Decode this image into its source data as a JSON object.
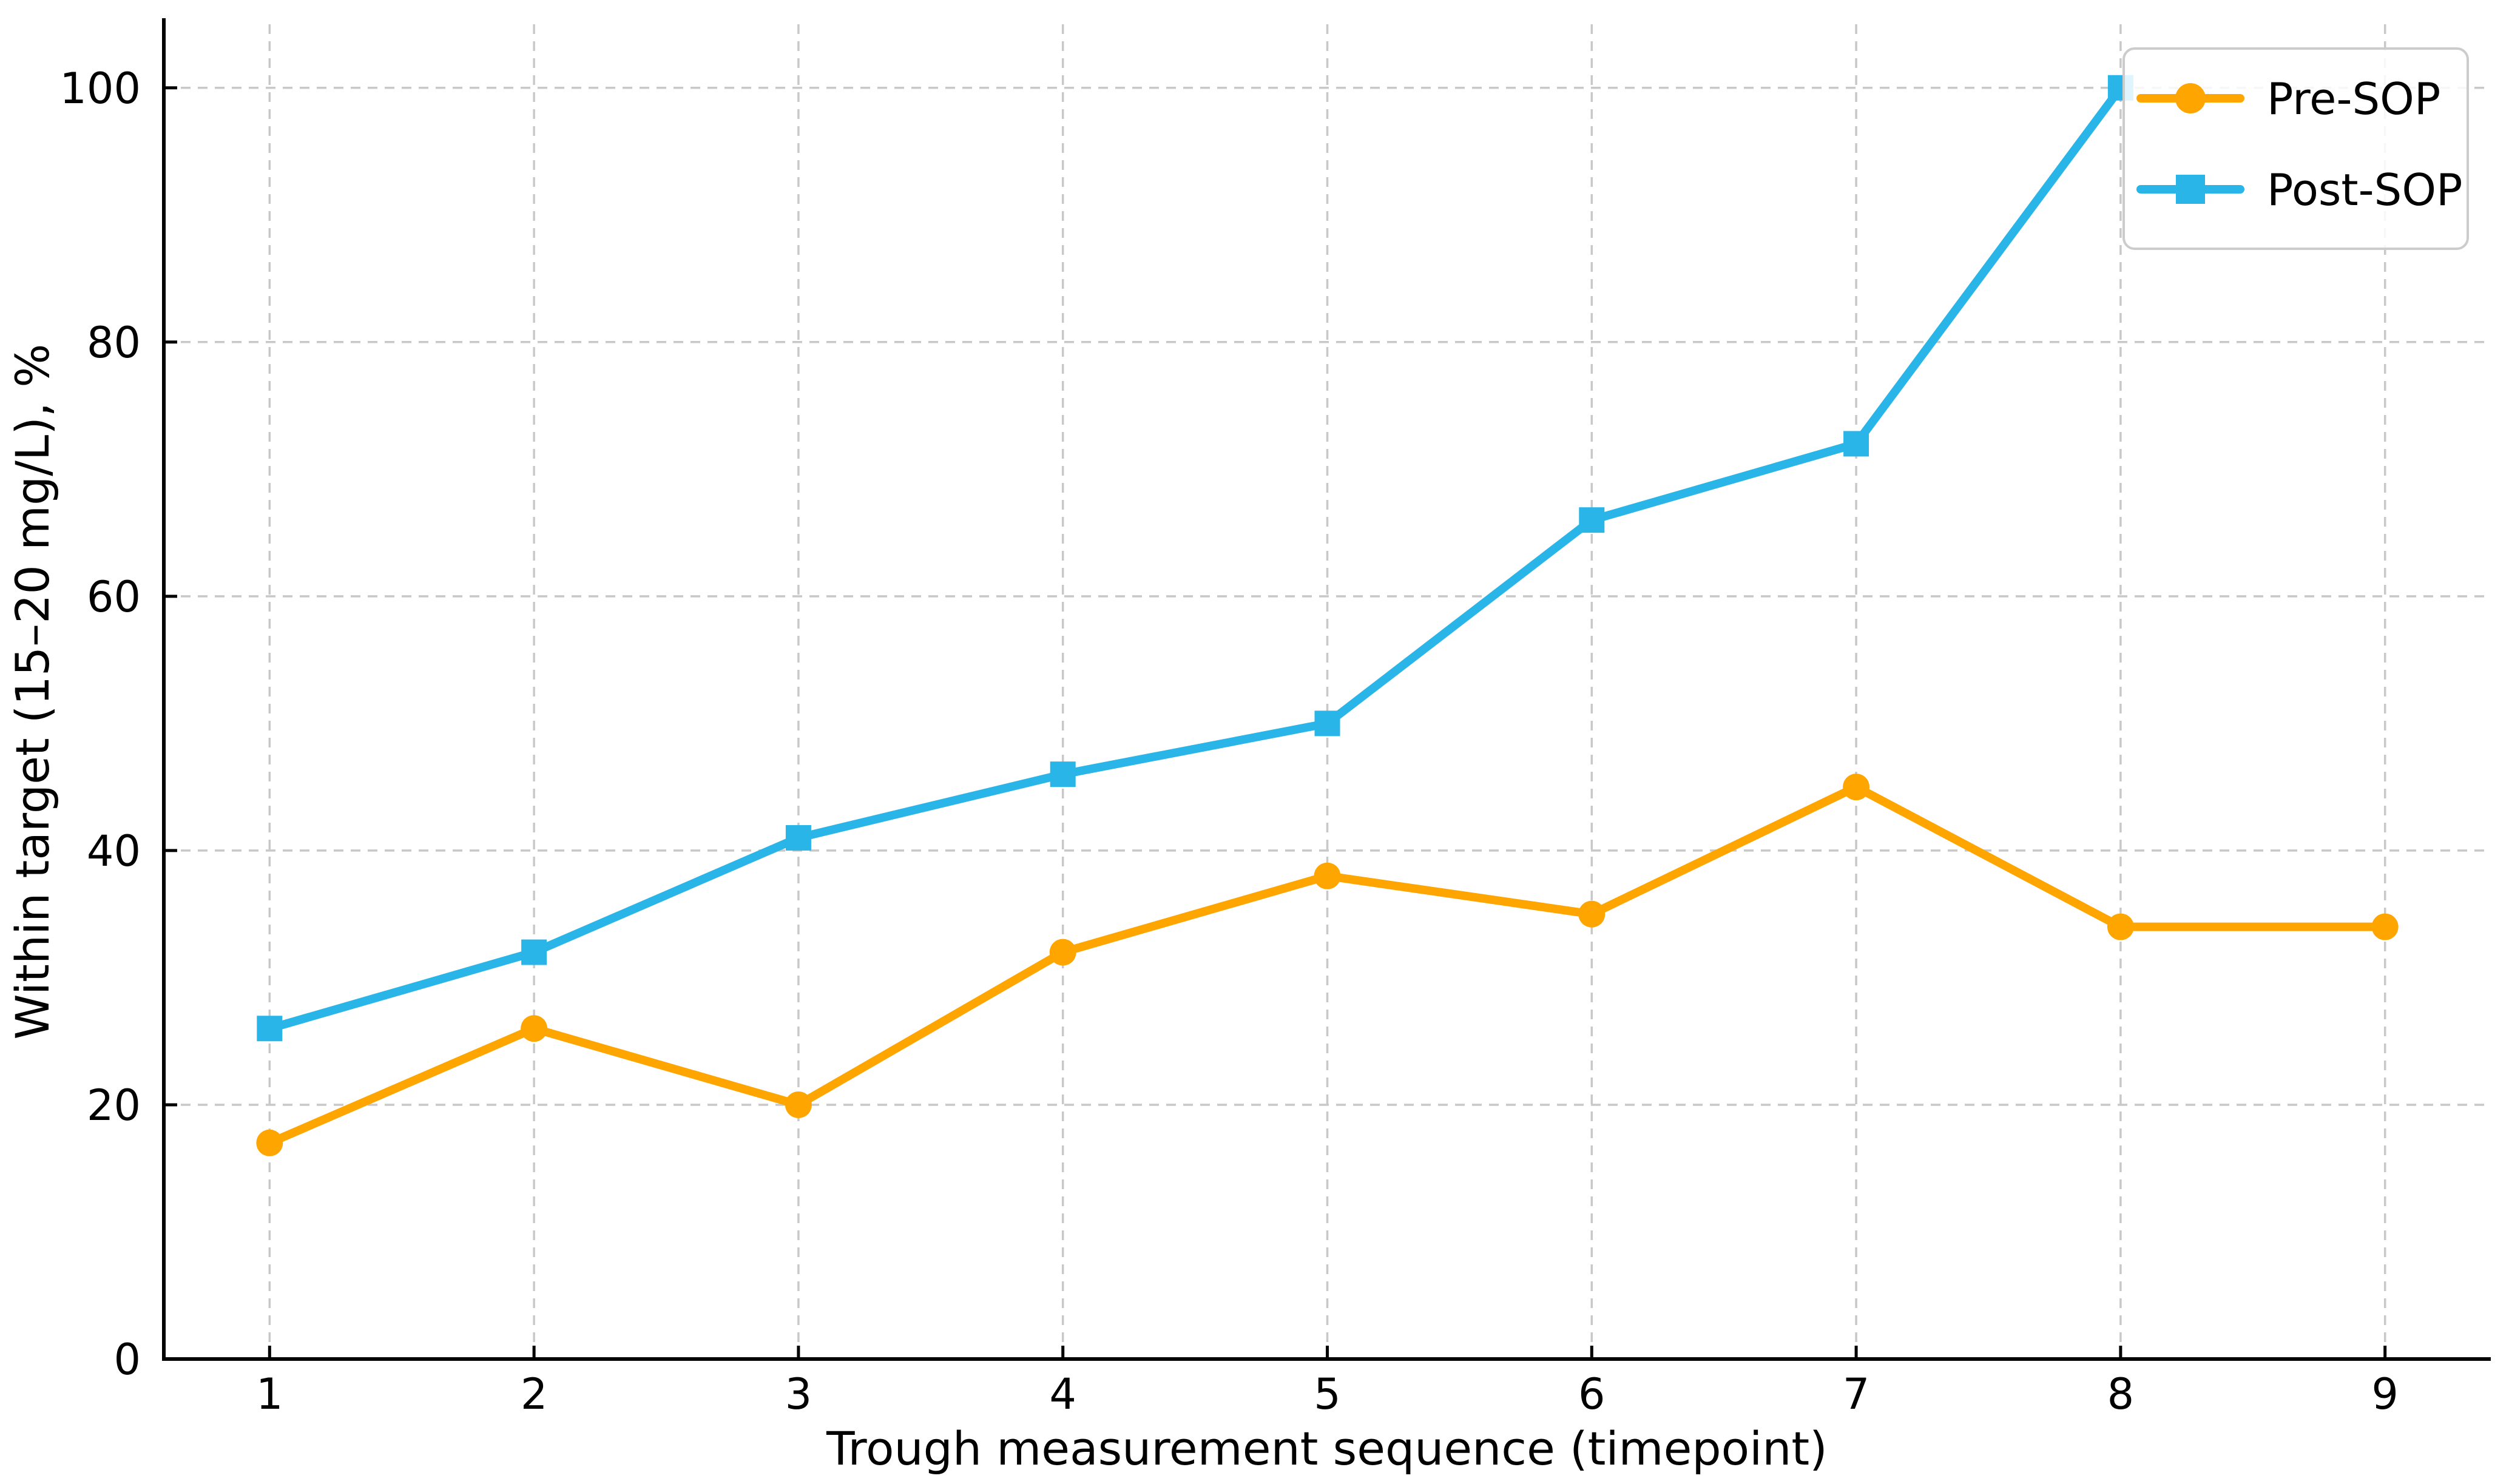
{
  "chart_data": {
    "type": "line",
    "title": "",
    "xlabel": "Trough measurement sequence (timepoint)",
    "ylabel": "Within target (15–20 mg/L), %",
    "x_ticks": [
      1,
      2,
      3,
      4,
      5,
      6,
      7,
      8,
      9
    ],
    "y_ticks": [
      0,
      20,
      40,
      60,
      80,
      100
    ],
    "xlim": [
      0.6,
      9.4
    ],
    "ylim": [
      0,
      105
    ],
    "grid": true,
    "grid_style": "dashed",
    "legend": {
      "position": "upper right",
      "entries": [
        "Pre-SOP",
        "Post-SOP"
      ]
    },
    "series": [
      {
        "name": "Pre-SOP",
        "marker": "circle",
        "color": "#FFA500",
        "x": [
          1,
          2,
          3,
          4,
          5,
          6,
          7,
          8,
          9
        ],
        "values": [
          17,
          26,
          20,
          32,
          38,
          35,
          45,
          34,
          34
        ]
      },
      {
        "name": "Post-SOP",
        "marker": "square",
        "color": "#29B5E8",
        "x": [
          1,
          2,
          3,
          4,
          5,
          6,
          7,
          8
        ],
        "values": [
          26,
          32,
          41,
          46,
          50,
          66,
          72,
          100
        ]
      }
    ]
  },
  "colors": {
    "background": "#ffffff",
    "grid": "#c8c8c8",
    "axis": "#000000",
    "text": "#000000",
    "legend_border": "#cccccc",
    "legend_background": "#ffffff"
  }
}
